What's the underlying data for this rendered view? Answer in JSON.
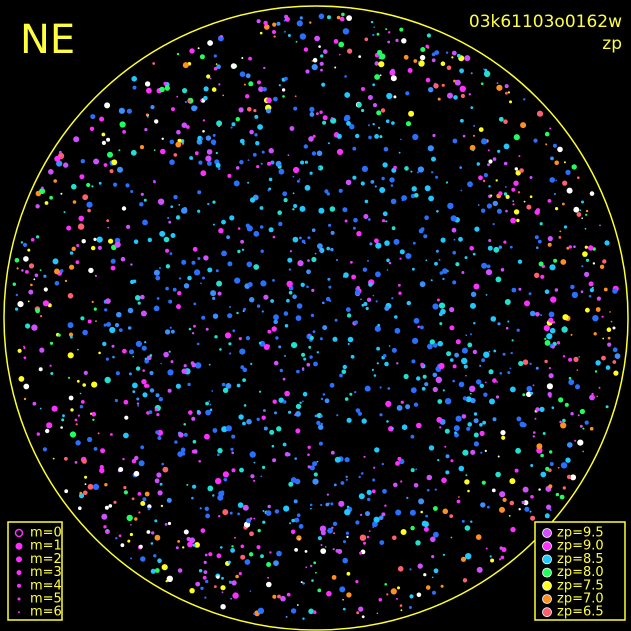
{
  "label": "NE",
  "title": "03k61103o0162w",
  "subtitle": "zp",
  "magnitude_legend": [
    "m=0",
    "m=1",
    "m=2",
    "m=3",
    "m=4",
    "m=5",
    "m=6"
  ],
  "zp_legend": [
    {
      "label": "zp=9.5",
      "color": "#d050ff"
    },
    {
      "label": "zp=9.0",
      "color": "#ff30ff"
    },
    {
      "label": "zp=8.5",
      "color": "#20c8ff"
    },
    {
      "label": "zp=8.0",
      "color": "#20ff60"
    },
    {
      "label": "zp=7.5",
      "color": "#ffff20"
    },
    {
      "label": "zp=7.0",
      "color": "#ff9020"
    },
    {
      "label": "zp=6.5",
      "color": "#ff6070"
    }
  ]
}
